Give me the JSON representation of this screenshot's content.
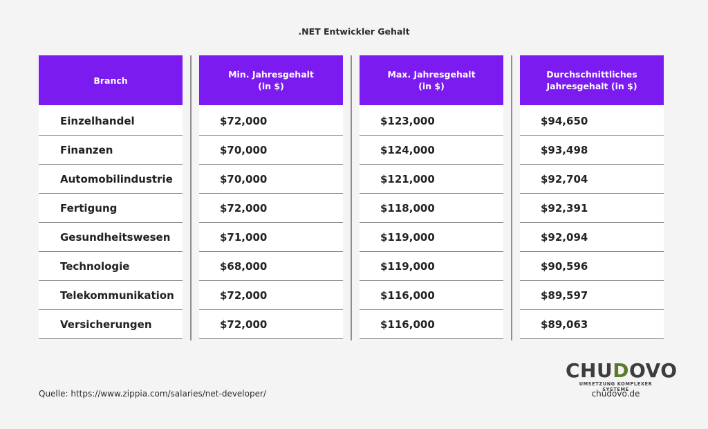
{
  "title": ".NET Entwickler Gehalt",
  "table": {
    "headers": [
      "Branch",
      "Min. Jahresgehalt\n(in $)",
      "Max. Jahresgehalt\n(in $)",
      "Durchschnittliches\nJahresgehalt (in $)"
    ],
    "rows": [
      [
        "Einzelhandel",
        "$72,000",
        "$123,000",
        "$94,650"
      ],
      [
        "Finanzen",
        "$70,000",
        "$124,000",
        "$93,498"
      ],
      [
        "Automobilindustrie",
        "$70,000",
        "$121,000",
        "$92,704"
      ],
      [
        "Fertigung",
        "$72,000",
        "$118,000",
        "$92,391"
      ],
      [
        "Gesundheitswesen",
        "$71,000",
        "$119,000",
        "$92,094"
      ],
      [
        "Technologie",
        "$68,000",
        "$119,000",
        "$90,596"
      ],
      [
        "Telekommunikation",
        "$72,000",
        "$116,000",
        "$89,597"
      ],
      [
        "Versicherungen",
        "$72,000",
        "$116,000",
        "$89,063"
      ]
    ]
  },
  "source": "Quelle: https://www.zippia.com/salaries/net-developer/",
  "logo": {
    "part1": "CHU",
    "accent": "D",
    "part2": "OVO",
    "tagline": "UMSETZUNG KOMPLEXER SYSTEME"
  },
  "website": "chudovo.de",
  "colors": {
    "header_bg": "#7b1bf0",
    "logo_accent": "#5c7a2c"
  }
}
